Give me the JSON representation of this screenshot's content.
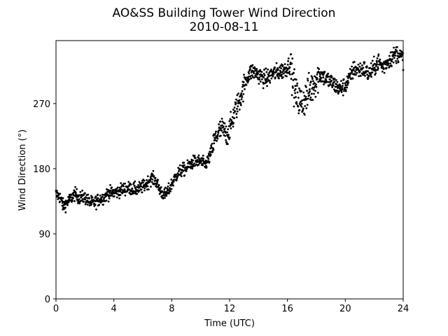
{
  "chart_data": {
    "type": "scatter",
    "title": "AO&SS Building Tower Wind Direction",
    "subtitle": "2010-08-11",
    "xlabel": "Time (UTC)",
    "ylabel": "Wind Direction (°)",
    "xlim": [
      0,
      24
    ],
    "ylim": [
      0,
      357
    ],
    "x_ticks": [
      0,
      4,
      8,
      12,
      16,
      20,
      24
    ],
    "y_ticks": [
      0,
      90,
      180,
      270
    ],
    "x_tick_labels": [
      "0",
      "4",
      "8",
      "12",
      "16",
      "20",
      "24"
    ],
    "y_tick_labels": [
      "0",
      "90",
      "180",
      "270"
    ],
    "grid": false,
    "marker_color": "#000000",
    "trend_points": [
      [
        0.0,
        145
      ],
      [
        0.3,
        140
      ],
      [
        0.5,
        128
      ],
      [
        0.8,
        134
      ],
      [
        1.0,
        138
      ],
      [
        1.3,
        145
      ],
      [
        1.6,
        140
      ],
      [
        2.0,
        140
      ],
      [
        2.3,
        134
      ],
      [
        2.6,
        132
      ],
      [
        3.0,
        138
      ],
      [
        3.3,
        140
      ],
      [
        3.6,
        146
      ],
      [
        4.0,
        147
      ],
      [
        4.3,
        148
      ],
      [
        4.6,
        152
      ],
      [
        5.0,
        153
      ],
      [
        5.3,
        152
      ],
      [
        5.6,
        151
      ],
      [
        6.0,
        155
      ],
      [
        6.3,
        160
      ],
      [
        6.6,
        167
      ],
      [
        6.9,
        163
      ],
      [
        7.2,
        150
      ],
      [
        7.5,
        143
      ],
      [
        7.8,
        150
      ],
      [
        8.1,
        163
      ],
      [
        8.4,
        173
      ],
      [
        8.7,
        178
      ],
      [
        9.0,
        180
      ],
      [
        9.3,
        187
      ],
      [
        9.6,
        190
      ],
      [
        10.0,
        190
      ],
      [
        10.3,
        185
      ],
      [
        10.6,
        195
      ],
      [
        10.9,
        215
      ],
      [
        11.2,
        230
      ],
      [
        11.5,
        235
      ],
      [
        11.8,
        226
      ],
      [
        12.1,
        240
      ],
      [
        12.4,
        262
      ],
      [
        12.7,
        275
      ],
      [
        13.0,
        295
      ],
      [
        13.3,
        310
      ],
      [
        13.6,
        315
      ],
      [
        14.0,
        310
      ],
      [
        14.3,
        305
      ],
      [
        14.6,
        305
      ],
      [
        15.0,
        312
      ],
      [
        15.3,
        313
      ],
      [
        15.6,
        315
      ],
      [
        16.0,
        320
      ],
      [
        16.2,
        325
      ],
      [
        16.4,
        300
      ],
      [
        16.6,
        280
      ],
      [
        17.0,
        270
      ],
      [
        17.3,
        280
      ],
      [
        17.6,
        290
      ],
      [
        18.0,
        305
      ],
      [
        18.3,
        310
      ],
      [
        18.6,
        305
      ],
      [
        19.0,
        300
      ],
      [
        19.3,
        295
      ],
      [
        19.6,
        290
      ],
      [
        20.0,
        295
      ],
      [
        20.3,
        305
      ],
      [
        20.6,
        318
      ],
      [
        21.0,
        316
      ],
      [
        21.3,
        318
      ],
      [
        21.6,
        310
      ],
      [
        22.0,
        320
      ],
      [
        22.3,
        328
      ],
      [
        22.6,
        320
      ],
      [
        23.0,
        330
      ],
      [
        23.3,
        335
      ],
      [
        23.6,
        340
      ],
      [
        24.0,
        332
      ]
    ]
  }
}
